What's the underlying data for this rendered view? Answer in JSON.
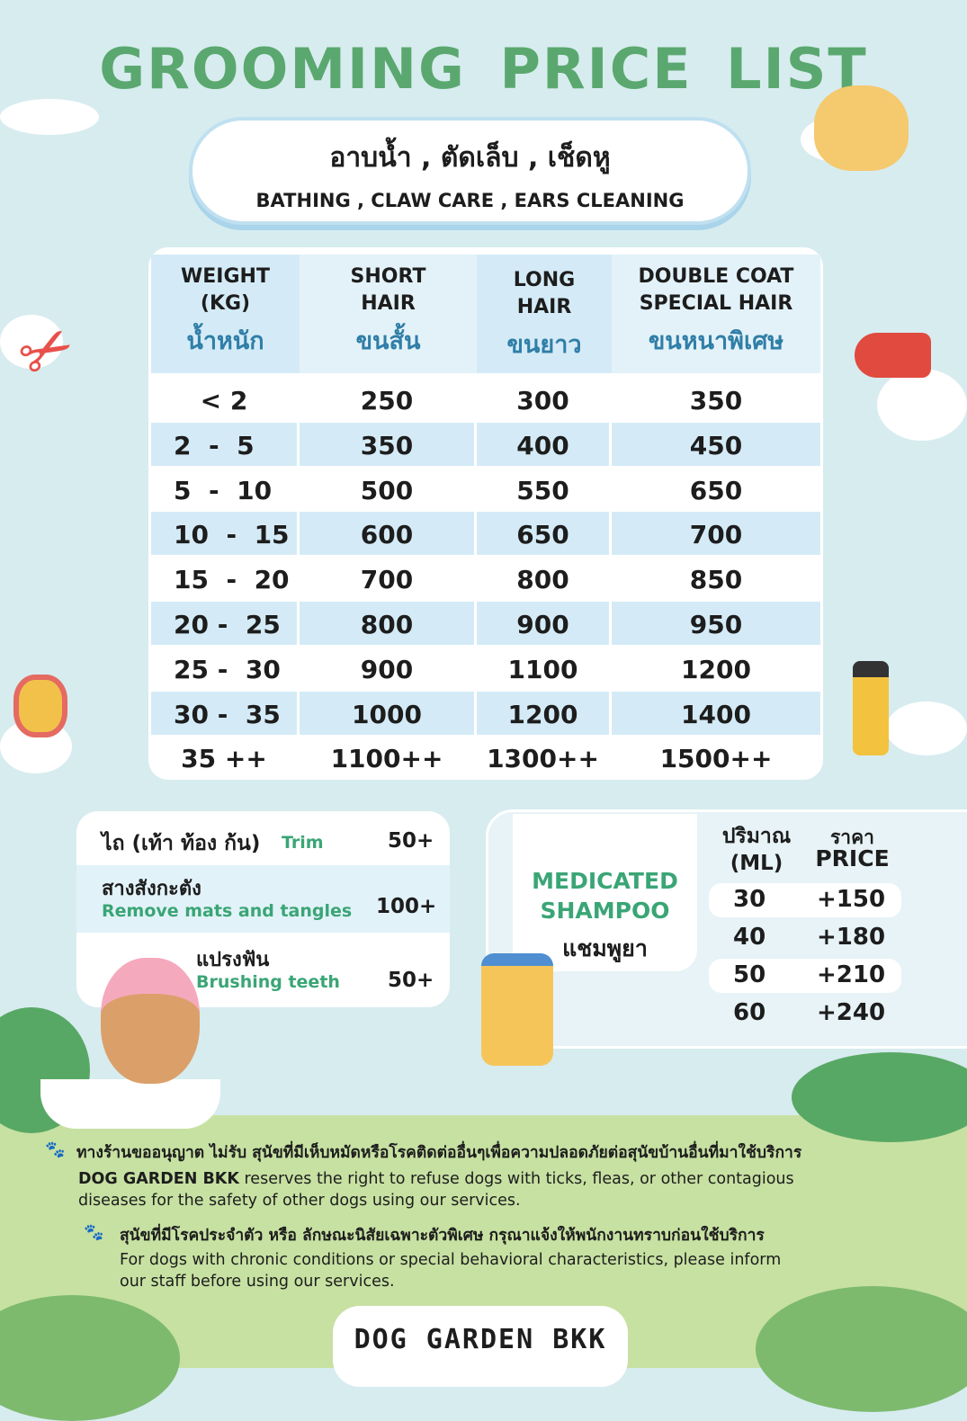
{
  "title": "GROOMING PRICE LIST",
  "subtitle": {
    "thai": "อาบน้ำ , ตัดเล็บ , เช็ดหู",
    "english": "BATHING , CLAW CARE , EARS CLEANING"
  },
  "price_table": {
    "headers": [
      {
        "en": "WEIGHT\n(KG)",
        "th": "น้ำหนัก"
      },
      {
        "en": "SHORT\nHAIR",
        "th": "ขนสั้น"
      },
      {
        "en": "LONG\nHAIR",
        "th": "ขนยาว"
      },
      {
        "en": "DOUBLE COAT\nSPECIAL HAIR",
        "th": "ขนหนาพิเศษ"
      }
    ],
    "rows": [
      [
        "< 2",
        "250",
        "300",
        "350"
      ],
      [
        "2  -  5",
        "350",
        "400",
        "450"
      ],
      [
        "5  -  10",
        "500",
        "550",
        "650"
      ],
      [
        "10  -  15",
        "600",
        "650",
        "700"
      ],
      [
        "15  -  20",
        "700",
        "800",
        "850"
      ],
      [
        "20 -  25",
        "800",
        "900",
        "950"
      ],
      [
        "25 -  30",
        "900",
        "1100",
        "1200"
      ],
      [
        "30 -  35",
        "1000",
        "1200",
        "1400"
      ],
      [
        "35 ++",
        "1100++",
        "1300++",
        "1500++"
      ]
    ]
  },
  "addons": [
    {
      "th": "ไถ (เท้า ท้อง ก้น)",
      "en": "Trim",
      "price": "50+"
    },
    {
      "th": "สางสังกะตัง",
      "en": "Remove mats and tangles",
      "price": "100+"
    },
    {
      "th": "แปรงฟัน",
      "en": "Brushing teeth",
      "price": "50+"
    }
  ],
  "shampoo": {
    "title_en": "MEDICATED\nSHAMPOO",
    "title_th": "แชมพูยา",
    "col_amount": "ปริมาณ\n(ML)",
    "col_price_th": "ราคา",
    "col_price_en": "PRICE",
    "rows": [
      [
        "30",
        "+150"
      ],
      [
        "40",
        "+180"
      ],
      [
        "50",
        "+210"
      ],
      [
        "60",
        "+240"
      ]
    ]
  },
  "notes": [
    {
      "th": "ทางร้านขออนุญาต ไม่รับ สุนัขที่มีเห็บหมัดหรือโรคติดต่ออื่นๆเพื่อความปลอดภัยต่อสุนัขบ้านอื่นที่มาใช้บริการ",
      "en_bold": "DOG GARDEN BKK",
      "en": " reserves the right to refuse dogs with ticks, fleas, or other contagious diseases for the safety of other dogs using our services."
    },
    {
      "th": "สุนัขที่มีโรคประจำตัว หรือ ลักษณะนิสัยเฉพาะตัวพิเศษ กรุณาแจ้งให้พนักงานทราบก่อนใช้บริการ",
      "en": "For dogs with chronic conditions or special behavioral characteristics, please inform our staff before using our services."
    }
  ],
  "logo": "DOG GARDEN BKK",
  "colors": {
    "title": "#5aa86f",
    "accent_green": "#3aa575",
    "row_blue": "#d4ebf7",
    "background": "#d7ecef",
    "ground": "#c7e1a2"
  }
}
